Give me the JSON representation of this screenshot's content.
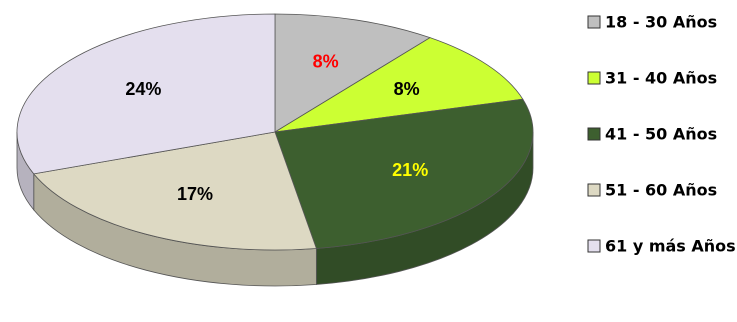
{
  "chart_data": {
    "type": "pie",
    "categories": [
      "18 - 30 Años",
      "31 - 40 Años",
      "41 - 50 Años",
      "51 - 60 Años",
      "61 y más Años"
    ],
    "values": [
      8,
      8,
      21,
      17,
      24
    ],
    "value_labels": [
      "8%",
      "8%",
      "21%",
      "17%",
      "24%"
    ],
    "colors": [
      "#bfbfbf",
      "#ccff33",
      "#3d5f2f",
      "#ddd9c3",
      "#e4dfee"
    ],
    "label_colors": [
      "#ff0000",
      "#000000",
      "#ffff00",
      "#000000",
      "#000000"
    ],
    "legend": "right"
  }
}
